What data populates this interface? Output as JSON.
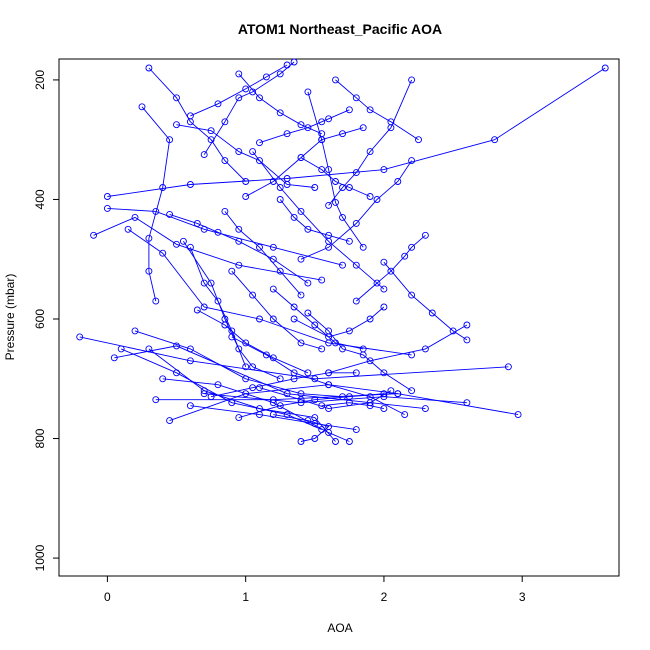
{
  "chart_data": {
    "type": "scatter",
    "title": "ATOM1 Northeast_Pacific AOA",
    "xlabel": "AOA",
    "ylabel": "Pressure (mbar)",
    "xlim": [
      -0.35,
      3.7
    ],
    "ylim": [
      1030,
      165
    ],
    "y_reversed": true,
    "x_ticks": [
      0,
      1,
      2,
      3
    ],
    "y_ticks": [
      200,
      400,
      600,
      800,
      1000
    ],
    "grid": false,
    "marker": "open-circle",
    "line": true,
    "color": "#0000ff",
    "series": [
      {
        "points": [
          [
            0.1,
            650
          ],
          [
            0.5,
            690
          ],
          [
            0.9,
            740
          ],
          [
            1.3,
            760
          ],
          [
            1.55,
            785
          ]
        ]
      },
      {
        "points": [
          [
            0.2,
            620
          ],
          [
            0.6,
            650
          ],
          [
            1.0,
            700
          ],
          [
            1.4,
            725
          ],
          [
            1.7,
            730
          ]
        ]
      },
      {
        "points": [
          [
            0.3,
            650
          ],
          [
            0.7,
            720
          ],
          [
            1.1,
            750
          ],
          [
            1.5,
            765
          ],
          [
            1.65,
            805
          ]
        ]
      },
      {
        "points": [
          [
            0.4,
            700
          ],
          [
            0.8,
            710
          ],
          [
            1.2,
            740
          ],
          [
            1.6,
            790
          ],
          [
            1.75,
            805
          ]
        ]
      },
      {
        "points": [
          [
            -0.2,
            630
          ],
          [
            0.6,
            670
          ],
          [
            1.5,
            700
          ],
          [
            2.9,
            680
          ]
        ]
      },
      {
        "points": [
          [
            0.05,
            665
          ],
          [
            0.5,
            645
          ],
          [
            1.3,
            725
          ],
          [
            2.3,
            750
          ]
        ]
      },
      {
        "points": [
          [
            0.45,
            770
          ],
          [
            1.0,
            725
          ],
          [
            1.6,
            710
          ],
          [
            2.1,
            725
          ]
        ]
      },
      {
        "points": [
          [
            0.35,
            735
          ],
          [
            1.2,
            735
          ],
          [
            2.1,
            725
          ],
          [
            2.97,
            760
          ]
        ]
      },
      {
        "points": [
          [
            0.7,
            725
          ],
          [
            1.4,
            740
          ],
          [
            2.0,
            730
          ],
          [
            2.6,
            740
          ]
        ]
      },
      {
        "points": [
          [
            0.6,
            745
          ],
          [
            1.1,
            760
          ],
          [
            1.5,
            775
          ],
          [
            1.8,
            785
          ]
        ]
      },
      {
        "points": [
          [
            0.0,
            415
          ],
          [
            0.35,
            420
          ],
          [
            0.7,
            450
          ],
          [
            1.2,
            480
          ],
          [
            1.7,
            510
          ]
        ]
      },
      {
        "points": [
          [
            -0.1,
            460
          ],
          [
            0.2,
            430
          ],
          [
            0.5,
            475
          ],
          [
            0.95,
            510
          ],
          [
            1.55,
            535
          ]
        ]
      },
      {
        "points": [
          [
            0.0,
            395
          ],
          [
            0.6,
            375
          ],
          [
            1.3,
            365
          ],
          [
            2.0,
            350
          ],
          [
            2.8,
            300
          ],
          [
            3.6,
            180
          ]
        ]
      },
      {
        "points": [
          [
            0.15,
            450
          ],
          [
            0.4,
            490
          ],
          [
            0.7,
            580
          ],
          [
            1.1,
            600
          ],
          [
            1.6,
            640
          ],
          [
            2.2,
            660
          ]
        ]
      },
      {
        "points": [
          [
            0.25,
            245
          ],
          [
            0.45,
            300
          ],
          [
            0.4,
            380
          ],
          [
            0.3,
            465
          ],
          [
            0.3,
            520
          ],
          [
            0.35,
            570
          ]
        ]
      },
      {
        "points": [
          [
            0.5,
            275
          ],
          [
            0.75,
            285
          ],
          [
            0.95,
            320
          ],
          [
            1.1,
            335
          ],
          [
            1.3,
            375
          ],
          [
            1.5,
            380
          ]
        ]
      },
      {
        "points": [
          [
            0.45,
            425
          ],
          [
            0.65,
            440
          ],
          [
            0.8,
            455
          ],
          [
            0.95,
            470
          ],
          [
            1.2,
            500
          ],
          [
            1.45,
            540
          ]
        ]
      },
      {
        "points": [
          [
            0.55,
            470
          ],
          [
            0.75,
            540
          ],
          [
            0.85,
            600
          ],
          [
            0.95,
            650
          ],
          [
            1.05,
            680
          ],
          [
            1.25,
            700
          ]
        ]
      },
      {
        "points": [
          [
            1.05,
            320
          ],
          [
            1.25,
            380
          ],
          [
            1.4,
            420
          ],
          [
            1.6,
            470
          ],
          [
            1.8,
            510
          ],
          [
            2.0,
            550
          ]
        ]
      },
      {
        "points": [
          [
            0.7,
            325
          ],
          [
            0.85,
            270
          ],
          [
            0.95,
            230
          ],
          [
            1.05,
            220
          ],
          [
            1.25,
            190
          ],
          [
            1.35,
            170
          ]
        ]
      },
      {
        "points": [
          [
            1.45,
            220
          ],
          [
            1.55,
            300
          ],
          [
            1.6,
            350
          ],
          [
            1.65,
            405
          ],
          [
            1.7,
            430
          ],
          [
            1.85,
            480
          ]
        ]
      },
      {
        "points": [
          [
            1.1,
            305
          ],
          [
            1.3,
            290
          ],
          [
            1.45,
            280
          ],
          [
            1.55,
            270
          ],
          [
            1.6,
            265
          ],
          [
            1.75,
            250
          ]
        ]
      },
      {
        "points": [
          [
            1.6,
            410
          ],
          [
            1.7,
            380
          ],
          [
            1.8,
            355
          ],
          [
            1.9,
            320
          ],
          [
            2.05,
            280
          ],
          [
            2.2,
            200
          ]
        ]
      },
      {
        "points": [
          [
            1.0,
            395
          ],
          [
            1.2,
            370
          ],
          [
            1.4,
            330
          ],
          [
            1.55,
            300
          ],
          [
            1.7,
            290
          ],
          [
            1.85,
            280
          ]
        ]
      },
      {
        "points": [
          [
            1.4,
            500
          ],
          [
            1.6,
            480
          ],
          [
            1.8,
            440
          ],
          [
            1.95,
            400
          ],
          [
            2.1,
            370
          ],
          [
            2.2,
            335
          ]
        ]
      },
      {
        "points": [
          [
            0.9,
            630
          ],
          [
            1.15,
            660
          ],
          [
            1.35,
            690
          ],
          [
            1.6,
            710
          ],
          [
            1.9,
            730
          ],
          [
            2.15,
            760
          ]
        ]
      },
      {
        "points": [
          [
            1.8,
            570
          ],
          [
            1.95,
            540
          ],
          [
            2.05,
            520
          ],
          [
            2.15,
            495
          ],
          [
            2.2,
            480
          ],
          [
            2.3,
            460
          ]
        ]
      },
      {
        "points": [
          [
            1.45,
            590
          ],
          [
            1.6,
            620
          ],
          [
            1.7,
            650
          ],
          [
            1.85,
            660
          ],
          [
            2.0,
            690
          ],
          [
            2.2,
            720
          ]
        ]
      },
      {
        "points": [
          [
            2.0,
            505
          ],
          [
            2.2,
            560
          ],
          [
            2.35,
            590
          ],
          [
            2.5,
            620
          ],
          [
            2.6,
            635
          ]
        ]
      },
      {
        "points": [
          [
            1.6,
            690
          ],
          [
            1.9,
            670
          ],
          [
            2.3,
            650
          ],
          [
            2.6,
            610
          ]
        ]
      },
      {
        "points": [
          [
            1.35,
            600
          ],
          [
            1.6,
            630
          ],
          [
            1.75,
            620
          ],
          [
            1.9,
            600
          ],
          [
            2.0,
            580
          ]
        ]
      },
      {
        "points": [
          [
            1.2,
            550
          ],
          [
            1.35,
            580
          ],
          [
            1.5,
            610
          ],
          [
            1.65,
            640
          ],
          [
            1.85,
            650
          ]
        ]
      },
      {
        "points": [
          [
            0.9,
            520
          ],
          [
            1.05,
            560
          ],
          [
            1.2,
            600
          ],
          [
            1.4,
            640
          ],
          [
            1.55,
            650
          ]
        ]
      },
      {
        "points": [
          [
            0.6,
            480
          ],
          [
            0.7,
            540
          ],
          [
            0.8,
            570
          ],
          [
            0.9,
            620
          ],
          [
            1.0,
            680
          ]
        ]
      },
      {
        "points": [
          [
            0.85,
            420
          ],
          [
            0.95,
            450
          ],
          [
            1.1,
            480
          ],
          [
            1.25,
            520
          ],
          [
            1.4,
            560
          ]
        ]
      },
      {
        "points": [
          [
            0.3,
            180
          ],
          [
            0.5,
            230
          ],
          [
            0.6,
            270
          ],
          [
            0.75,
            300
          ],
          [
            0.85,
            335
          ],
          [
            1.0,
            370
          ]
        ]
      },
      {
        "points": [
          [
            0.6,
            260
          ],
          [
            0.8,
            240
          ],
          [
            1.0,
            215
          ],
          [
            1.15,
            195
          ],
          [
            1.3,
            175
          ]
        ]
      },
      {
        "points": [
          [
            0.95,
            190
          ],
          [
            1.1,
            230
          ],
          [
            1.25,
            255
          ],
          [
            1.4,
            275
          ],
          [
            1.55,
            290
          ]
        ]
      },
      {
        "points": [
          [
            1.65,
            200
          ],
          [
            1.8,
            230
          ],
          [
            1.9,
            250
          ],
          [
            2.05,
            270
          ],
          [
            2.25,
            300
          ]
        ]
      },
      {
        "points": [
          [
            1.4,
            330
          ],
          [
            1.55,
            350
          ],
          [
            1.65,
            370
          ],
          [
            1.75,
            380
          ],
          [
            1.9,
            395
          ]
        ]
      },
      {
        "points": [
          [
            1.25,
            400
          ],
          [
            1.35,
            430
          ],
          [
            1.45,
            450
          ],
          [
            1.6,
            460
          ],
          [
            1.75,
            470
          ]
        ]
      },
      {
        "points": [
          [
            0.65,
            585
          ],
          [
            0.85,
            610
          ],
          [
            1.0,
            640
          ],
          [
            1.2,
            665
          ],
          [
            1.45,
            690
          ]
        ]
      },
      {
        "points": [
          [
            0.75,
            730
          ],
          [
            1.05,
            715
          ],
          [
            1.35,
            700
          ],
          [
            1.6,
            690
          ],
          [
            1.8,
            690
          ]
        ]
      },
      {
        "points": [
          [
            1.1,
            715
          ],
          [
            1.4,
            735
          ],
          [
            1.6,
            750
          ],
          [
            1.9,
            740
          ],
          [
            2.05,
            720
          ]
        ]
      },
      {
        "points": [
          [
            1.2,
            760
          ],
          [
            1.45,
            770
          ],
          [
            1.6,
            780
          ],
          [
            1.5,
            800
          ],
          [
            1.4,
            805
          ]
        ]
      },
      {
        "points": [
          [
            0.95,
            765
          ],
          [
            1.25,
            745
          ],
          [
            1.5,
            735
          ],
          [
            1.75,
            730
          ],
          [
            2.0,
            725
          ]
        ]
      },
      {
        "points": [
          [
            1.55,
            745
          ],
          [
            1.75,
            740
          ],
          [
            1.9,
            745
          ],
          [
            2.0,
            750
          ]
        ]
      }
    ]
  }
}
